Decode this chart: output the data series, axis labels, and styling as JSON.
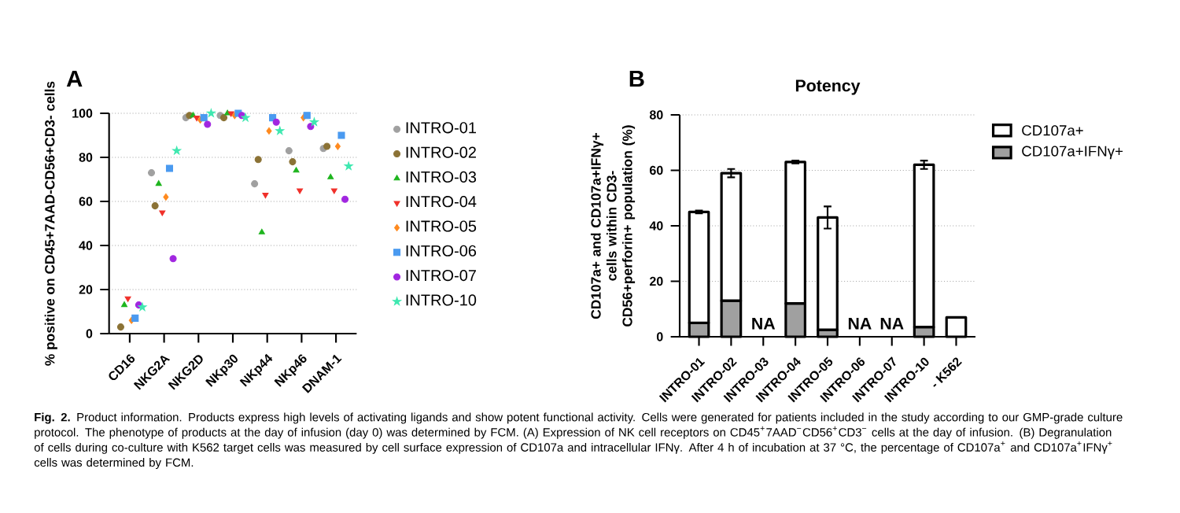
{
  "chart_data": [
    {
      "type": "scatter",
      "title": "A",
      "ylabel": "% positive on CD45+7AAD-CD56+CD3- cells",
      "categories": [
        "CD16",
        "NKG2A",
        "NKG2D",
        "NKp30",
        "NKp44",
        "NKp46",
        "DNAM-1"
      ],
      "ylim": [
        0,
        100
      ],
      "yticks": [
        0,
        20,
        40,
        60,
        80,
        100
      ],
      "grid": "y",
      "legend": "right",
      "series": [
        {
          "name": "INTRO-01",
          "color": "#a0a0a0",
          "marker": "circle",
          "values": [
            null,
            73,
            98,
            99,
            68,
            83,
            84
          ]
        },
        {
          "name": "INTRO-02",
          "color": "#8b7235",
          "marker": "circle",
          "values": [
            3,
            58,
            99,
            98,
            79,
            78,
            85
          ]
        },
        {
          "name": "INTRO-03",
          "color": "#1fb51f",
          "marker": "triangle",
          "values": [
            13,
            68,
            99,
            100,
            46,
            74,
            71
          ]
        },
        {
          "name": "INTRO-04",
          "color": "#f0302a",
          "marker": "triangle",
          "values": [
            16,
            55,
            98,
            100,
            63,
            65,
            65
          ]
        },
        {
          "name": "INTRO-05",
          "color": "#ff8a1f",
          "marker": "diamond",
          "values": [
            6,
            62,
            97,
            99,
            92,
            98,
            85
          ]
        },
        {
          "name": "INTRO-06",
          "color": "#4a9af0",
          "marker": "square",
          "values": [
            7,
            75,
            98,
            100,
            98,
            99,
            90
          ]
        },
        {
          "name": "INTRO-07",
          "color": "#a126e0",
          "marker": "circle",
          "values": [
            13,
            34,
            95,
            99,
            96,
            94,
            61
          ]
        },
        {
          "name": "INTRO-10",
          "color": "#3fe8b0",
          "marker": "star",
          "values": [
            12,
            83,
            100,
            98,
            92,
            96,
            76
          ]
        }
      ],
      "annotations": [
        "**Fig. 2.** Product information. Products express high levels of activating ligands and show potent functional activity. Cells were generated for patients included in the study according to our GMP-grade culture protocol. The phenotype of products at the day of infusion (day 0) was determined by FCM. (A) Expression of NK cell receptors on CD45$^{+}$7AAD$^{−}$CD56$^{+}$CD3$^{−}$ cells at the day of infusion. (B) Degranulation of cells during co-culture with K562 target cells was measured by cell surface expression of CD107a and intracellular IFNγ. After 4 h of incubation at 37 °C, the percentage of CD107a$^{+}$ and CD107a$^{+}$IFNγ$^{+}$ cells was determined by FCM."
      ]
    },
    {
      "type": "bar",
      "stacked": true,
      "title": "Potency",
      "annotations": [
        "B"
      ],
      "ylabel": "CD107a+ and CD107a+IFNγ+ cells within CD3-CD56+perforin+ population (%)",
      "categories": [
        "INTRO-01",
        "INTRO-02",
        "INTRO-03",
        "INTRO-04",
        "INTRO-05",
        "INTRO-06",
        "INTRO-07",
        "INTRO-10",
        "- K562"
      ],
      "ylim": [
        0,
        80
      ],
      "yticks": [
        0,
        20,
        40,
        60,
        80
      ],
      "grid": "y",
      "legend": "top right",
      "series": [
        {
          "name": "CD107a+IFNγ+",
          "color": "#a0a0a0",
          "values": [
            5,
            13,
            null,
            12,
            2.5,
            null,
            null,
            3.5,
            null
          ],
          "value_labels": [
            null,
            null,
            "NA",
            null,
            null,
            "NA",
            "NA",
            null,
            null
          ]
        },
        {
          "name": "CD107a+",
          "color": "#ffffff",
          "values": [
            40,
            46,
            null,
            51,
            40.5,
            null,
            null,
            58.5,
            7
          ],
          "errors": [
            0.5,
            1.5,
            null,
            0.5,
            4,
            null,
            null,
            1.5,
            null
          ]
        }
      ]
    }
  ]
}
